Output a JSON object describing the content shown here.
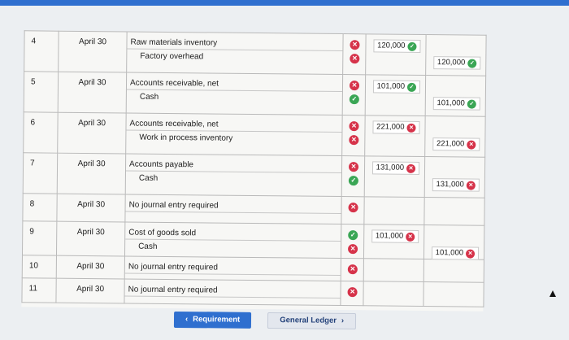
{
  "colors": {
    "accent": "#2f6fcf",
    "correct": "#3aa655",
    "incorrect": "#d6334a"
  },
  "entries": [
    {
      "num": "4",
      "date": "April 30",
      "lines": [
        {
          "account": "Raw materials inventory",
          "mark": "incorrect",
          "debit": "120,000",
          "debit_status": "correct",
          "credit": ""
        },
        {
          "account": "Factory overhead",
          "mark": "incorrect",
          "debit": "",
          "credit": "120,000",
          "credit_status": "correct"
        }
      ]
    },
    {
      "num": "5",
      "date": "April 30",
      "lines": [
        {
          "account": "Accounts receivable, net",
          "mark": "incorrect",
          "debit": "101,000",
          "debit_status": "correct",
          "credit": ""
        },
        {
          "account": "Cash",
          "mark": "correct",
          "debit": "",
          "credit": "101,000",
          "credit_status": "correct"
        }
      ]
    },
    {
      "num": "6",
      "date": "April 30",
      "lines": [
        {
          "account": "Accounts receivable, net",
          "mark": "incorrect",
          "debit": "221,000",
          "debit_status": "incorrect",
          "credit": ""
        },
        {
          "account": "Work in process inventory",
          "mark": "incorrect",
          "debit": "",
          "credit": "221,000",
          "credit_status": "incorrect"
        }
      ]
    },
    {
      "num": "7",
      "date": "April 30",
      "lines": [
        {
          "account": "Accounts payable",
          "mark": "incorrect",
          "debit": "131,000",
          "debit_status": "incorrect",
          "credit": ""
        },
        {
          "account": "Cash",
          "mark": "correct",
          "debit": "",
          "credit": "131,000",
          "credit_status": "incorrect"
        }
      ]
    },
    {
      "num": "8",
      "date": "April 30",
      "lines": [
        {
          "account": "No journal entry required",
          "mark": "incorrect",
          "debit": "",
          "credit": ""
        },
        {
          "account": "",
          "mark": "",
          "debit": "",
          "credit": ""
        }
      ]
    },
    {
      "num": "9",
      "date": "April 30",
      "lines": [
        {
          "account": "Cost of goods sold",
          "mark": "correct",
          "debit": "101,000",
          "debit_status": "incorrect",
          "credit": ""
        },
        {
          "account": "Cash",
          "mark": "incorrect",
          "debit": "",
          "credit": "101,000",
          "credit_status": "incorrect"
        }
      ]
    },
    {
      "num": "10",
      "date": "April 30",
      "lines": [
        {
          "account": "No journal entry required",
          "mark": "incorrect",
          "debit": "",
          "credit": ""
        }
      ]
    },
    {
      "num": "11",
      "date": "April 30",
      "lines": [
        {
          "account": "No journal entry required",
          "mark": "incorrect",
          "debit": "",
          "credit": ""
        }
      ]
    }
  ],
  "nav": {
    "prev_label": "Requirement",
    "next_label": "General Ledger"
  }
}
